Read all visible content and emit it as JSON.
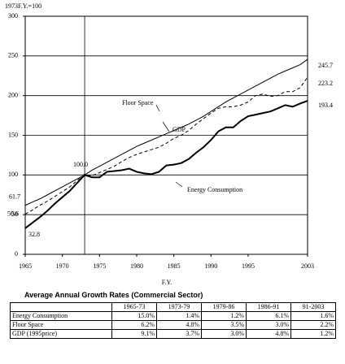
{
  "chart_data": {
    "type": "line",
    "ylabel": "1973F.Y.=100",
    "xlabel": "F.Y.",
    "x": [
      1965,
      1966,
      1967,
      1968,
      1969,
      1970,
      1971,
      1972,
      1973,
      1974,
      1975,
      1976,
      1977,
      1978,
      1979,
      1980,
      1981,
      1982,
      1983,
      1984,
      1985,
      1986,
      1987,
      1988,
      1989,
      1990,
      1991,
      1992,
      1993,
      1994,
      1995,
      1996,
      1997,
      1998,
      1999,
      2000,
      2001,
      2002,
      2003
    ],
    "xlim": [
      1965,
      2003
    ],
    "xticks": [
      1965,
      1970,
      1975,
      1980,
      1985,
      1990,
      1995,
      2003
    ],
    "ylim": [
      0,
      300
    ],
    "yticks": [
      0,
      50,
      100,
      150,
      200,
      250,
      300
    ],
    "grid": true,
    "reference_x": 1973,
    "series": [
      {
        "name": "Floor Space",
        "color": "#000000",
        "style": "solid",
        "values": [
          61.7,
          66,
          70,
          75,
          80,
          85,
          90,
          95,
          100,
          106,
          111,
          116,
          121,
          126,
          131,
          136,
          140,
          144,
          148,
          152,
          156,
          160,
          164,
          169,
          174,
          180,
          186,
          192,
          197,
          202,
          207,
          212,
          217,
          222,
          227,
          231,
          235,
          239,
          245.7
        ],
        "value_labels": [
          "61.7",
          null,
          null,
          null,
          null,
          null,
          null,
          null,
          null,
          null,
          null,
          null,
          null,
          null,
          null,
          null,
          null,
          null,
          null,
          null,
          null,
          null,
          null,
          null,
          null,
          null,
          null,
          null,
          null,
          null,
          null,
          null,
          null,
          null,
          null,
          null,
          null,
          null,
          "245.7"
        ]
      },
      {
        "name": "GDP",
        "color": "#000000",
        "style": "dashed",
        "values": [
          50.6,
          56,
          62,
          67,
          73,
          79,
          85,
          93,
          100,
          99,
          103,
          107,
          111,
          117,
          122,
          126,
          129,
          132,
          135,
          140,
          146,
          150,
          156,
          164,
          171,
          178,
          184,
          186,
          186,
          188,
          192,
          200,
          202,
          199,
          200,
          205,
          205,
          210,
          223.2
        ],
        "value_labels": [
          "50.6",
          null,
          null,
          null,
          null,
          null,
          null,
          null,
          null,
          null,
          null,
          null,
          null,
          null,
          null,
          null,
          null,
          null,
          null,
          null,
          null,
          null,
          null,
          null,
          null,
          null,
          null,
          null,
          null,
          null,
          null,
          null,
          null,
          null,
          null,
          null,
          null,
          null,
          "223.2"
        ]
      },
      {
        "name": "Energy Consumption",
        "color": "#000000",
        "style": "thick",
        "values": [
          32.8,
          40,
          47,
          55,
          64,
          72,
          80,
          90,
          100,
          97,
          97,
          104,
          105,
          106,
          108,
          104,
          102,
          101,
          104,
          112,
          113,
          115,
          120,
          128,
          135,
          144,
          155,
          160,
          160,
          168,
          174,
          176,
          178,
          180,
          184,
          188,
          186,
          190,
          193.4
        ],
        "value_labels": [
          "32.8",
          null,
          null,
          null,
          null,
          null,
          null,
          null,
          "100.0",
          null,
          null,
          null,
          null,
          null,
          null,
          null,
          null,
          null,
          null,
          null,
          null,
          null,
          null,
          null,
          null,
          null,
          null,
          null,
          null,
          null,
          null,
          null,
          null,
          null,
          null,
          null,
          null,
          null,
          "193.4"
        ]
      }
    ]
  },
  "table": {
    "title": "Average Annual Growth Rates (Commercial Sector)",
    "columns": [
      "1965-73",
      "1973-79",
      "1979-86",
      "1986-91",
      "91-2003"
    ],
    "rows": [
      [
        "Energy Consumption",
        "15.0%",
        "1.4%",
        "1.2%",
        "6.1%",
        "1.6%"
      ],
      [
        "Floor Space",
        "6.2%",
        "4.8%",
        "3.5%",
        "3.0%",
        "2.2%"
      ],
      [
        "GDP (1995price)",
        "9.1%",
        "3.7%",
        "3.0%",
        "4.8%",
        "1.2%"
      ]
    ]
  }
}
